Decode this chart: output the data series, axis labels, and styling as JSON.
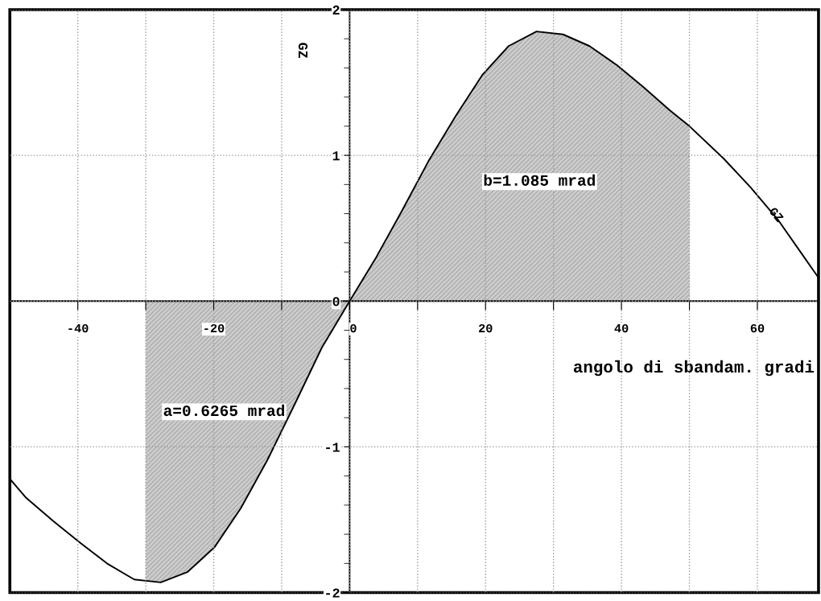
{
  "chart_data": {
    "type": "line",
    "xlabel": "angolo di sbandam. gradi",
    "ylabel": "GZ",
    "xlim": [
      -50,
      69
    ],
    "ylim": [
      -2,
      2
    ],
    "xticks": [
      -40,
      {
        "value": -30,
        "label": null
      },
      -20,
      {
        "value": -10,
        "label": null
      },
      0,
      {
        "value": 10,
        "label": null
      },
      20,
      {
        "value": 30,
        "label": null
      },
      40,
      {
        "value": 50,
        "label": null
      },
      60
    ],
    "yticks": [
      -2,
      {
        "value": -1.8,
        "label": null
      },
      {
        "value": -1.6,
        "label": null
      },
      {
        "value": -1.4,
        "label": null
      },
      {
        "value": -1.2,
        "label": null
      },
      -1,
      {
        "value": -0.8,
        "label": null
      },
      {
        "value": -0.6,
        "label": null
      },
      {
        "value": -0.4,
        "label": null
      },
      {
        "value": -0.2,
        "label": null
      },
      0,
      {
        "value": 0.2,
        "label": null
      },
      {
        "value": 0.4,
        "label": null
      },
      {
        "value": 0.6,
        "label": null
      },
      {
        "value": 0.8,
        "label": null
      },
      1,
      {
        "value": 1.2,
        "label": null
      },
      {
        "value": 1.4,
        "label": null
      },
      {
        "value": 1.6,
        "label": null
      },
      {
        "value": 1.8,
        "label": null
      },
      2
    ],
    "grid": true,
    "series": [
      {
        "type": "area",
        "color": "#8c8c8c",
        "x": [
          -30,
          -27.8,
          -23.9,
          -19.9,
          -16,
          -12.1,
          -8,
          -4.1,
          0
        ],
        "values": [
          -1.92,
          -1.93,
          -1.86,
          -1.69,
          -1.42,
          -1.09,
          -0.7,
          -0.32,
          0
        ]
      },
      {
        "type": "area",
        "color": "#8c8c8c",
        "x": [
          0,
          3.9,
          7.7,
          11.6,
          15.6,
          19.5,
          23.4,
          27.5,
          31.4,
          35.3,
          39.3,
          43.2,
          47.1,
          50
        ],
        "values": [
          0,
          0.3,
          0.62,
          0.96,
          1.27,
          1.55,
          1.75,
          1.85,
          1.83,
          1.75,
          1.62,
          1.47,
          1.31,
          1.2
        ]
      },
      {
        "color": "#000000",
        "x": [
          -50,
          -47.6,
          -43.6,
          -39.6,
          -35.7,
          -31.7,
          -27.8,
          -23.9,
          -19.9,
          -16,
          -12.1,
          -8,
          -4.1,
          0,
          3.9,
          7.7,
          11.6,
          15.6,
          19.5,
          23.4,
          27.5,
          31.4,
          35.3,
          39.3,
          43.2,
          47.1,
          50,
          55,
          59,
          63,
          66.9,
          69
        ],
        "values": [
          -1.22,
          -1.35,
          -1.51,
          -1.66,
          -1.8,
          -1.91,
          -1.93,
          -1.86,
          -1.69,
          -1.42,
          -1.09,
          -0.7,
          -0.32,
          0,
          0.3,
          0.62,
          0.96,
          1.27,
          1.55,
          1.75,
          1.85,
          1.83,
          1.75,
          1.62,
          1.47,
          1.31,
          1.2,
          0.98,
          0.78,
          0.56,
          0.3,
          0.16
        ]
      }
    ],
    "annotations": [
      "b=1.085 mrad",
      "a=0.6265 mrad",
      {
        "text": "GZ",
        "x": 62.7,
        "y": 0.59
      }
    ]
  }
}
